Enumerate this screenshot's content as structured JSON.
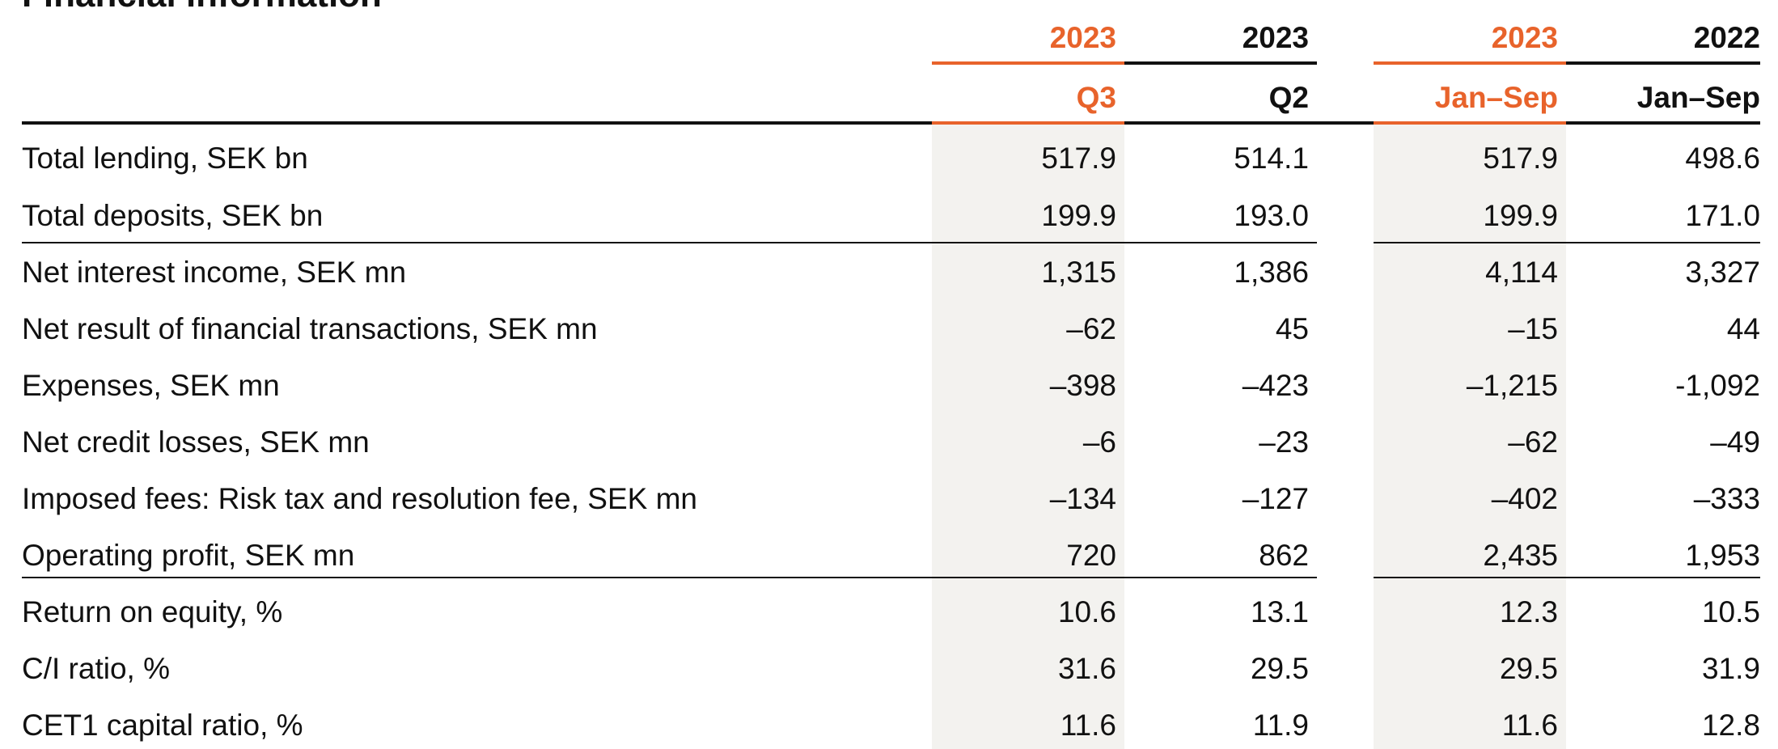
{
  "title": "Financial information",
  "colors": {
    "accent": "#e8632b",
    "text": "#111111",
    "shade": "#f3f2ef"
  },
  "columns": [
    {
      "year": "2023",
      "period": "Q3",
      "accent": true
    },
    {
      "year": "2023",
      "period": "Q2",
      "accent": false
    },
    {
      "year": "2023",
      "period": "Jan–Sep",
      "accent": true
    },
    {
      "year": "2022",
      "period": "Jan–Sep",
      "accent": false
    }
  ],
  "rows": [
    {
      "label": "Total lending, SEK bn",
      "values": [
        "517.9",
        "514.1",
        "517.9",
        "498.6"
      ]
    },
    {
      "label": "Total deposits, SEK bn",
      "values": [
        "199.9",
        "193.0",
        "199.9",
        "171.0"
      ]
    },
    {
      "label": "Net interest income, SEK mn",
      "values": [
        "1,315",
        "1,386",
        "4,114",
        "3,327"
      ]
    },
    {
      "label": "Net result of financial transactions, SEK mn",
      "values": [
        "–62",
        "45",
        "–15",
        "44"
      ]
    },
    {
      "label": "Expenses, SEK mn",
      "values": [
        "–398",
        "–423",
        "–1,215",
        "-1,092"
      ]
    },
    {
      "label": "Net credit losses, SEK mn",
      "values": [
        "–6",
        "–23",
        "–62",
        "–49"
      ]
    },
    {
      "label": "Imposed fees: Risk tax and resolution fee, SEK mn",
      "values": [
        "–134",
        "–127",
        "–402",
        "–333"
      ]
    },
    {
      "label": "Operating profit, SEK mn",
      "values": [
        "720",
        "862",
        "2,435",
        "1,953"
      ]
    },
    {
      "label": "Return on equity, %",
      "values": [
        "10.6",
        "13.1",
        "12.3",
        "10.5"
      ]
    },
    {
      "label": "C/I ratio, %",
      "values": [
        "31.6",
        "29.5",
        "29.5",
        "31.9"
      ]
    },
    {
      "label": "CET1 capital ratio, %",
      "values": [
        "11.6",
        "11.9",
        "11.6",
        "12.8"
      ]
    }
  ]
}
